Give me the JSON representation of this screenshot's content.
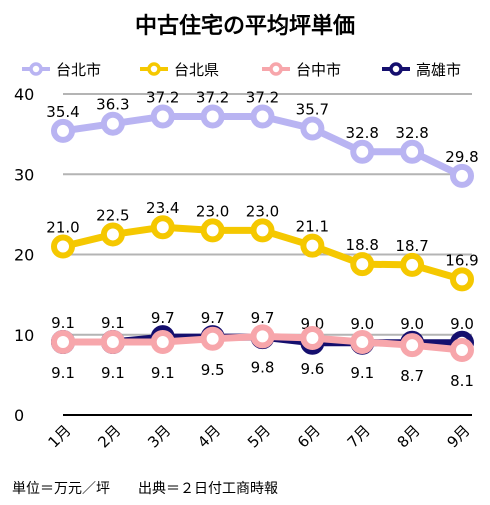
{
  "header": {
    "title": "中古住宅の平均坪単価"
  },
  "footer": {
    "unit_text": "単位＝万元／坪",
    "source_text": "出典＝２日付工商時報"
  },
  "colors": {
    "taipei": "#b9b4f2",
    "new_taipei": "#f5c800",
    "taichung": "#f7a6ab",
    "kaohsiung": "#150f6e",
    "grid": "#b4b4b4",
    "axis": "#000000"
  },
  "chart_data": {
    "type": "line",
    "title": "中古住宅の平均坪単価",
    "categories": [
      "1月",
      "2月",
      "3月",
      "4月",
      "5月",
      "6月",
      "7月",
      "8月",
      "9月"
    ],
    "ylim": [
      0,
      40
    ],
    "yticks": [
      0,
      10,
      20,
      30,
      40
    ],
    "grid": true,
    "legend_position": "top",
    "series": [
      {
        "key": "kaohsiung",
        "name": "高雄市",
        "values": [
          9.1,
          9.1,
          9.7,
          9.7,
          9.7,
          9.0,
          9.0,
          9.0,
          9.0
        ],
        "label_position": "above"
      },
      {
        "key": "taichung",
        "name": "台中市",
        "values": [
          9.1,
          9.1,
          9.1,
          9.5,
          9.8,
          9.6,
          9.1,
          8.7,
          8.1
        ],
        "label_position": "below"
      },
      {
        "key": "new_taipei",
        "name": "台北県",
        "values": [
          21.0,
          22.5,
          23.4,
          23.0,
          23.0,
          21.1,
          18.8,
          18.7,
          16.9
        ],
        "label_position": "above"
      },
      {
        "key": "taipei",
        "name": "台北市",
        "values": [
          35.4,
          36.3,
          37.2,
          37.2,
          37.2,
          35.7,
          32.8,
          32.8,
          29.8
        ],
        "label_position": "above"
      }
    ],
    "legend_order": [
      "taipei",
      "new_taipei",
      "taichung",
      "kaohsiung"
    ]
  }
}
